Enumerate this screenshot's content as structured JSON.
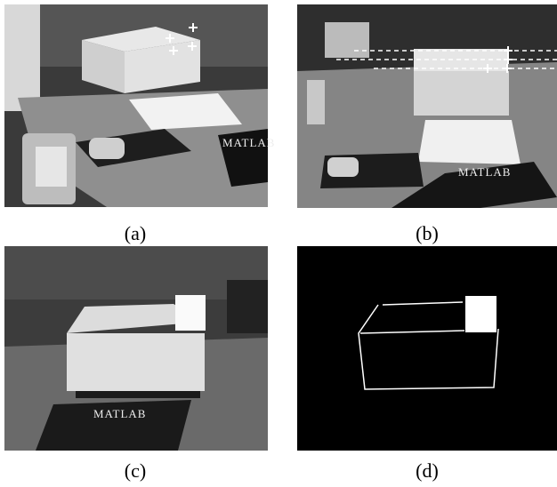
{
  "panels": [
    {
      "label": "(a)",
      "book_text": "MATLAB"
    },
    {
      "label": "(b)",
      "book_text": "MATLAB"
    },
    {
      "label": "(c)",
      "book_text": "MATLAB"
    },
    {
      "label": "(d)"
    }
  ]
}
